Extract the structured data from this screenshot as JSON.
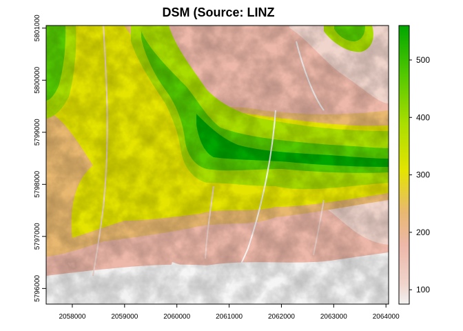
{
  "title": "DSM (Source: LINZ",
  "map": {
    "type": "raster",
    "x_ticks": [
      "2058000",
      "2059000",
      "2060000",
      "2061000",
      "2062000",
      "2063000",
      "2064000"
    ],
    "y_ticks": [
      "5801000",
      "5800000",
      "5799000",
      "5798000",
      "5797000",
      "5796000"
    ],
    "x_range": [
      2057500,
      2064050
    ],
    "y_range": [
      5795700,
      5801050
    ],
    "legend": {
      "ticks": [
        "100",
        "200",
        "300",
        "400",
        "500"
      ],
      "range": [
        75,
        560
      ],
      "colors": [
        "#f2f2f2",
        "#edb8a9",
        "#e8b870",
        "#e4e400",
        "#7ed600",
        "#00a600"
      ]
    }
  }
}
